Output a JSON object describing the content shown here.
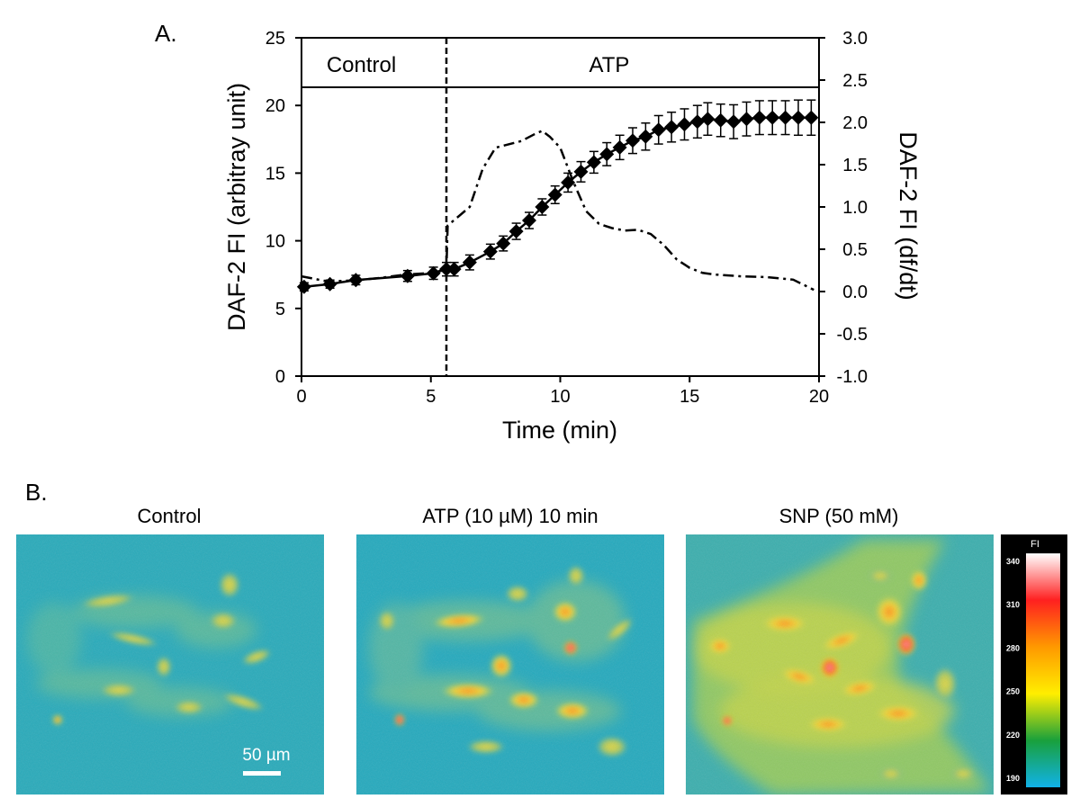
{
  "panel_a": {
    "label": "A."
  },
  "panel_b": {
    "label": "B.",
    "images": [
      {
        "title": "Control",
        "scale_bar": "50 µm"
      },
      {
        "title": "ATP (10 µM) 10 min"
      },
      {
        "title": "SNP (50 mM)"
      }
    ],
    "colorbar": {
      "title": "FI",
      "ticks": [
        "340",
        "310",
        "280",
        "250",
        "220",
        "190"
      ],
      "colors": [
        "#ffffff",
        "#ff2020",
        "#ff9900",
        "#ffee00",
        "#19a03c",
        "#11b2e8"
      ]
    }
  },
  "chart_data": {
    "type": "line",
    "xlabel": "Time (min)",
    "ylabel": "DAF-2 FI (arbitray unit)",
    "y2label": "DAF-2 FI (df/dt)",
    "xlim": [
      0,
      20
    ],
    "ylim": [
      0,
      25
    ],
    "y2lim": [
      -1.0,
      3.0
    ],
    "xticks": [
      "0",
      "5",
      "10",
      "15",
      "20"
    ],
    "yticks": [
      "0",
      "5",
      "10",
      "15",
      "20",
      "25"
    ],
    "y2ticks": [
      "-1.0",
      "-0.5",
      "0.0",
      "0.5",
      "1.0",
      "1.5",
      "2.0",
      "2.5",
      "3.0"
    ],
    "phases": [
      {
        "label": "Control",
        "start": 0,
        "end": 5.6
      },
      {
        "label": "ATP",
        "start": 5.6,
        "end": 20
      }
    ],
    "series": [
      {
        "name": "DAF-2 FI",
        "axis": "left",
        "style": "solid-diamond-errorbar",
        "x": [
          0.1,
          1.1,
          2.1,
          4.1,
          5.1,
          5.6,
          5.9,
          6.5,
          7.3,
          7.8,
          8.3,
          8.8,
          9.3,
          9.8,
          10.3,
          10.8,
          11.3,
          11.8,
          12.3,
          12.8,
          13.3,
          13.8,
          14.3,
          14.8,
          15.3,
          15.7,
          16.2,
          16.7,
          17.2,
          17.7,
          18.2,
          18.7,
          19.2,
          19.7
        ],
        "y": [
          6.6,
          6.8,
          7.1,
          7.4,
          7.6,
          7.9,
          7.9,
          8.4,
          9.2,
          9.8,
          10.7,
          11.5,
          12.5,
          13.4,
          14.3,
          15.1,
          15.8,
          16.4,
          16.9,
          17.4,
          17.7,
          18.2,
          18.4,
          18.6,
          18.8,
          19.0,
          18.9,
          18.8,
          19.0,
          19.1,
          19.1,
          19.1,
          19.1,
          19.1
        ],
        "error": [
          0.3,
          0.3,
          0.35,
          0.4,
          0.45,
          0.5,
          0.5,
          0.55,
          0.55,
          0.55,
          0.6,
          0.6,
          0.6,
          0.65,
          0.7,
          0.75,
          0.8,
          0.85,
          0.9,
          0.95,
          1.0,
          1.05,
          1.1,
          1.15,
          1.2,
          1.2,
          1.2,
          1.25,
          1.25,
          1.25,
          1.25,
          1.25,
          1.3,
          1.3
        ]
      },
      {
        "name": "DAF-2 FI (df/dt)",
        "axis": "right",
        "style": "dash-dot",
        "x": [
          0,
          1,
          2,
          3,
          4,
          5,
          5.6,
          5.65,
          6.5,
          7.0,
          7.5,
          8.0,
          8.5,
          9.0,
          9.3,
          9.6,
          10.0,
          10.5,
          11.0,
          11.5,
          12.0,
          12.5,
          13.0,
          13.5,
          14.0,
          14.5,
          15.0,
          15.5,
          16.0,
          17.0,
          18.0,
          19.0,
          19.8
        ],
        "y": [
          0.18,
          0.12,
          0.13,
          0.16,
          0.2,
          0.22,
          0.26,
          0.78,
          1.0,
          1.45,
          1.7,
          1.74,
          1.78,
          1.86,
          1.9,
          1.83,
          1.7,
          1.3,
          0.95,
          0.8,
          0.75,
          0.72,
          0.73,
          0.68,
          0.55,
          0.38,
          0.28,
          0.22,
          0.2,
          0.18,
          0.17,
          0.14,
          0.02
        ]
      }
    ]
  }
}
